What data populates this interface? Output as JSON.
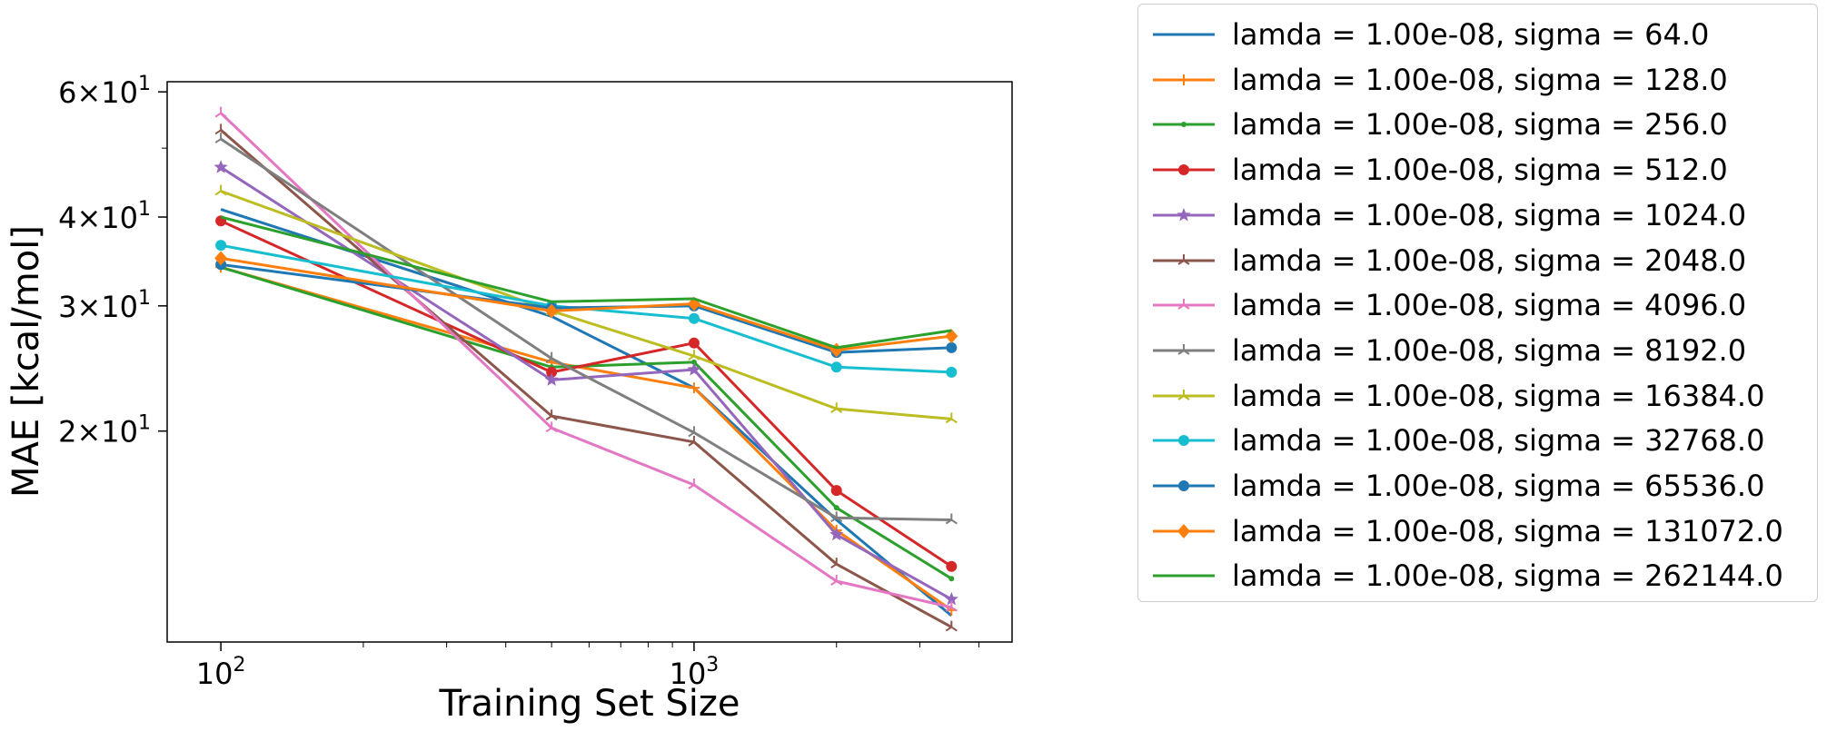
{
  "chart_data": {
    "type": "line",
    "title": "",
    "xlabel": "Training Set Size",
    "ylabel": "MAE [kcal/mol]",
    "xscale": "log",
    "yscale": "log",
    "xlim": [
      77,
      4700
    ],
    "ylim": [
      10.1,
      62
    ],
    "grid": false,
    "legend_placement": "outside-right",
    "x": [
      100,
      500,
      1000,
      2000,
      3500
    ],
    "x_ticks": [
      {
        "value": 100,
        "base": "10",
        "exp": "2"
      },
      {
        "value": 1000,
        "base": "10",
        "exp": "3"
      }
    ],
    "y_ticks": [
      {
        "value": 20,
        "mant": "2",
        "base": "10",
        "exp": "1"
      },
      {
        "value": 30,
        "mant": "3",
        "base": "10",
        "exp": "1"
      },
      {
        "value": 40,
        "mant": "4",
        "base": "10",
        "exp": "1"
      },
      {
        "value": 60,
        "mant": "6",
        "base": "10",
        "exp": "1"
      }
    ],
    "series": [
      {
        "name": "lamda = 1.00e-08, sigma = 64.0",
        "color": "#1f77b4",
        "marker": "none",
        "values": [
          41.0,
          29.0,
          23.0,
          15.0,
          11.0
        ]
      },
      {
        "name": "lamda = 1.00e-08, sigma = 128.0",
        "color": "#ff7f0e",
        "marker": "plus",
        "values": [
          34.0,
          25.0,
          23.0,
          14.5,
          11.2
        ]
      },
      {
        "name": "lamda = 1.00e-08, sigma = 256.0",
        "color": "#2ca02c",
        "marker": "point",
        "values": [
          34.0,
          24.6,
          25.0,
          15.6,
          12.4
        ]
      },
      {
        "name": "lamda = 1.00e-08, sigma = 512.0",
        "color": "#d62728",
        "marker": "circle",
        "values": [
          39.5,
          24.2,
          26.6,
          16.5,
          12.9
        ]
      },
      {
        "name": "lamda = 1.00e-08, sigma = 1024.0",
        "color": "#9467bd",
        "marker": "star",
        "values": [
          47.0,
          23.6,
          24.4,
          14.3,
          11.6
        ]
      },
      {
        "name": "lamda = 1.00e-08, sigma = 2048.0",
        "color": "#8c564b",
        "marker": "tri",
        "values": [
          53.0,
          21.0,
          19.3,
          13.0,
          10.6
        ]
      },
      {
        "name": "lamda = 1.00e-08, sigma = 4096.0",
        "color": "#e377c2",
        "marker": "tri",
        "values": [
          56.0,
          20.2,
          16.8,
          12.3,
          11.3
        ]
      },
      {
        "name": "lamda = 1.00e-08, sigma = 8192.0",
        "color": "#7f7f7f",
        "marker": "tri",
        "values": [
          51.5,
          25.3,
          19.9,
          15.1,
          15.0
        ]
      },
      {
        "name": "lamda = 1.00e-08, sigma = 16384.0",
        "color": "#bcbd22",
        "marker": "tri",
        "values": [
          43.5,
          29.5,
          25.5,
          21.5,
          20.8
        ]
      },
      {
        "name": "lamda = 1.00e-08, sigma = 32768.0",
        "color": "#17becf",
        "marker": "circle",
        "values": [
          36.5,
          30.0,
          28.8,
          24.6,
          24.2
        ]
      },
      {
        "name": "lamda = 1.00e-08, sigma = 65536.0",
        "color": "#1f77b4",
        "marker": "circle",
        "values": [
          34.3,
          29.8,
          30.0,
          25.8,
          26.2
        ]
      },
      {
        "name": "lamda = 1.00e-08, sigma = 131072.0",
        "color": "#ff7f0e",
        "marker": "diamond",
        "values": [
          35.0,
          29.5,
          30.2,
          26.0,
          27.2
        ]
      },
      {
        "name": "lamda = 1.00e-08, sigma = 262144.0",
        "color": "#2ca02c",
        "marker": "none",
        "values": [
          40.0,
          30.4,
          30.7,
          26.2,
          27.7
        ]
      }
    ]
  }
}
